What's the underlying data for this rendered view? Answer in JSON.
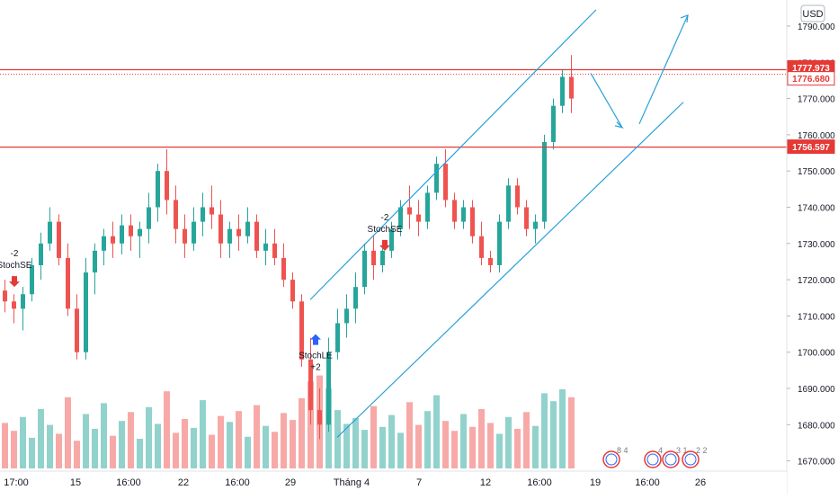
{
  "currency": "USD",
  "chart_data": {
    "type": "candlestick",
    "title": "",
    "xlabel": "",
    "ylabel": "",
    "ylim": [
      1665,
      1797
    ],
    "grid": false,
    "y_ticks": [
      "1790.000",
      "1780.000",
      "1770.000",
      "1760.000",
      "1750.000",
      "1740.000",
      "1730.000",
      "1720.000",
      "1710.000",
      "1700.000",
      "1690.000",
      "1680.000",
      "1670.000"
    ],
    "x_ticks": [
      "17:00",
      "15",
      "16:00",
      "22",
      "16:00",
      "29",
      "Tháng 4",
      "7",
      "12",
      "16:00",
      "19",
      "16:00",
      "26"
    ],
    "price_lines": [
      {
        "value": 1777.973,
        "label": "1777.973",
        "style": "solid",
        "color": "#e53935"
      },
      {
        "value": 1776.68,
        "label": "1776.680",
        "style": "dotted",
        "color": "#e53935"
      },
      {
        "value": 1756.597,
        "label": "1756.597",
        "style": "solid",
        "color": "#e53935"
      }
    ],
    "annotations": [
      {
        "text_top": "-2",
        "text_bottom": "StochSE",
        "signal": "sell",
        "price": 1718
      },
      {
        "text_top": "-2",
        "text_bottom": "StochSE",
        "signal": "sell",
        "price": 1728
      },
      {
        "text_top": "StochLE",
        "text_bottom": "+2",
        "signal": "buy",
        "price": 1702
      }
    ],
    "channel": {
      "upper": [
        [
          1714.5,
          1794.5
        ]
      ],
      "lower": [
        [
          1676.5,
          1769.0
        ]
      ]
    },
    "projection": [
      1777,
      1762,
      1763,
      1793
    ],
    "event_badges": [
      "8",
      "4",
      "4",
      "3",
      "1",
      "2",
      "2"
    ],
    "candles": [
      [
        1717,
        1720,
        1711,
        1714
      ],
      [
        1714,
        1716,
        1708,
        1712
      ],
      [
        1712,
        1718,
        1706,
        1716
      ],
      [
        1716,
        1726,
        1714,
        1724
      ],
      [
        1724,
        1733,
        1720,
        1730
      ],
      [
        1730,
        1740,
        1728,
        1736
      ],
      [
        1736,
        1738,
        1724,
        1726
      ],
      [
        1726,
        1730,
        1710,
        1712
      ],
      [
        1712,
        1716,
        1698,
        1700
      ],
      [
        1700,
        1726,
        1698,
        1722
      ],
      [
        1722,
        1730,
        1716,
        1728
      ],
      [
        1728,
        1734,
        1724,
        1732
      ],
      [
        1732,
        1736,
        1726,
        1730
      ],
      [
        1730,
        1738,
        1727,
        1735
      ],
      [
        1735,
        1738,
        1728,
        1732
      ],
      [
        1732,
        1736,
        1726,
        1734
      ],
      [
        1734,
        1744,
        1730,
        1740
      ],
      [
        1740,
        1752,
        1736,
        1750
      ],
      [
        1750,
        1756,
        1738,
        1742
      ],
      [
        1742,
        1746,
        1730,
        1734
      ],
      [
        1734,
        1738,
        1726,
        1730
      ],
      [
        1730,
        1740,
        1728,
        1736
      ],
      [
        1736,
        1744,
        1732,
        1740
      ],
      [
        1740,
        1746,
        1734,
        1738
      ],
      [
        1738,
        1742,
        1726,
        1730
      ],
      [
        1730,
        1736,
        1726,
        1734
      ],
      [
        1734,
        1738,
        1728,
        1732
      ],
      [
        1732,
        1740,
        1730,
        1736
      ],
      [
        1736,
        1738,
        1726,
        1728
      ],
      [
        1728,
        1734,
        1724,
        1730
      ],
      [
        1730,
        1734,
        1724,
        1726
      ],
      [
        1726,
        1730,
        1718,
        1720
      ],
      [
        1720,
        1722,
        1712,
        1714
      ],
      [
        1714,
        1716,
        1696,
        1698
      ],
      [
        1698,
        1704,
        1680,
        1684
      ],
      [
        1684,
        1690,
        1676,
        1680
      ],
      [
        1680,
        1704,
        1678,
        1700
      ],
      [
        1700,
        1712,
        1698,
        1708
      ],
      [
        1708,
        1716,
        1704,
        1712
      ],
      [
        1712,
        1722,
        1708,
        1718
      ],
      [
        1718,
        1730,
        1716,
        1728
      ],
      [
        1728,
        1732,
        1720,
        1724
      ],
      [
        1724,
        1730,
        1722,
        1728
      ],
      [
        1728,
        1736,
        1726,
        1734
      ],
      [
        1734,
        1742,
        1732,
        1740
      ],
      [
        1740,
        1746,
        1734,
        1738
      ],
      [
        1738,
        1742,
        1732,
        1736
      ],
      [
        1736,
        1746,
        1734,
        1744
      ],
      [
        1744,
        1754,
        1742,
        1752
      ],
      [
        1752,
        1756,
        1740,
        1742
      ],
      [
        1742,
        1744,
        1734,
        1736
      ],
      [
        1736,
        1742,
        1734,
        1740
      ],
      [
        1740,
        1742,
        1730,
        1732
      ],
      [
        1732,
        1736,
        1724,
        1726
      ],
      [
        1726,
        1728,
        1722,
        1724
      ],
      [
        1724,
        1738,
        1722,
        1736
      ],
      [
        1736,
        1748,
        1734,
        1746
      ],
      [
        1746,
        1748,
        1738,
        1740
      ],
      [
        1740,
        1742,
        1732,
        1734
      ],
      [
        1734,
        1738,
        1730,
        1736
      ],
      [
        1736,
        1760,
        1734,
        1758
      ],
      [
        1758,
        1770,
        1756,
        1768
      ],
      [
        1768,
        1778,
        1766,
        1776
      ],
      [
        1776,
        1782,
        1766,
        1770
      ]
    ],
    "volume": [
      0.46,
      0.38,
      0.52,
      0.31,
      0.6,
      0.44,
      0.35,
      0.72,
      0.28,
      0.55,
      0.4,
      0.66,
      0.33,
      0.48,
      0.57,
      0.3,
      0.62,
      0.45,
      0.78,
      0.36,
      0.5,
      0.41,
      0.69,
      0.34,
      0.53,
      0.47,
      0.58,
      0.32,
      0.64,
      0.43,
      0.37,
      0.56,
      0.49,
      0.71,
      0.88,
      0.94,
      0.81,
      0.59,
      0.45,
      0.51,
      0.39,
      0.63,
      0.42,
      0.54,
      0.36,
      0.67,
      0.44,
      0.58,
      0.74,
      0.48,
      0.38,
      0.55,
      0.42,
      0.6,
      0.46,
      0.35,
      0.52,
      0.4,
      0.57,
      0.43,
      0.76,
      0.68,
      0.8,
      0.72
    ]
  }
}
